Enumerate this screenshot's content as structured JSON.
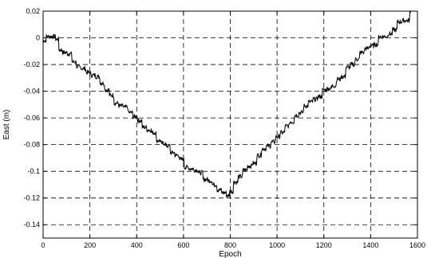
{
  "chart_data": {
    "type": "line",
    "title": "",
    "xlabel": "Epoch",
    "ylabel": "East (m)",
    "xlim": [
      0,
      1600
    ],
    "ylim": [
      -0.15,
      0.02
    ],
    "x_ticks": [
      0,
      200,
      400,
      600,
      800,
      1000,
      1200,
      1400,
      1600
    ],
    "x_tick_labels": [
      "0",
      "200",
      "400",
      "600",
      "800",
      "1000",
      "1200",
      "1400",
      "1600"
    ],
    "y_ticks": [
      0.02,
      0,
      -0.02,
      -0.04,
      -0.06,
      -0.08,
      -0.1,
      -0.12,
      -0.14
    ],
    "y_tick_labels": [
      "0.02",
      "0",
      "-0.02",
      "-0.04",
      "-0.06",
      "-0.08",
      "-0.1",
      "-0.12",
      "-0.14"
    ],
    "grid": true,
    "legend": "none",
    "line_color": "#000000",
    "series": [
      {
        "x": [
          0,
          20,
          40,
          60,
          70,
          90,
          110,
          130,
          150,
          170,
          190,
          210,
          230,
          250,
          270,
          290,
          310,
          330,
          350,
          370,
          390,
          410,
          430,
          450,
          470,
          490,
          510,
          530,
          550,
          570,
          590,
          610,
          630,
          650,
          670,
          690,
          710,
          730,
          750,
          770,
          790,
          800,
          820,
          840,
          860,
          880,
          900,
          920,
          940,
          960,
          980,
          1000,
          1020,
          1040,
          1060,
          1080,
          1100,
          1120,
          1140,
          1160,
          1180,
          1200,
          1220,
          1240,
          1260,
          1280,
          1300,
          1320,
          1340,
          1360,
          1380,
          1400,
          1420,
          1440,
          1460,
          1480,
          1500,
          1520,
          1540,
          1560,
          1570
        ],
        "values": [
          -0.002,
          0.001,
          0.001,
          -0.001,
          -0.009,
          -0.011,
          -0.012,
          -0.018,
          -0.022,
          -0.023,
          -0.026,
          -0.028,
          -0.029,
          -0.034,
          -0.039,
          -0.043,
          -0.049,
          -0.051,
          -0.052,
          -0.056,
          -0.059,
          -0.062,
          -0.067,
          -0.069,
          -0.071,
          -0.077,
          -0.079,
          -0.081,
          -0.086,
          -0.088,
          -0.091,
          -0.097,
          -0.098,
          -0.099,
          -0.101,
          -0.106,
          -0.107,
          -0.11,
          -0.114,
          -0.116,
          -0.118,
          -0.115,
          -0.108,
          -0.104,
          -0.099,
          -0.096,
          -0.094,
          -0.088,
          -0.083,
          -0.081,
          -0.078,
          -0.074,
          -0.071,
          -0.066,
          -0.063,
          -0.058,
          -0.056,
          -0.051,
          -0.048,
          -0.046,
          -0.044,
          -0.039,
          -0.038,
          -0.036,
          -0.031,
          -0.029,
          -0.022,
          -0.02,
          -0.016,
          -0.011,
          -0.008,
          -0.006,
          -0.005,
          0.001,
          0.001,
          0.003,
          0.006,
          0.012,
          0.013,
          0.013,
          0.019
        ]
      }
    ]
  }
}
